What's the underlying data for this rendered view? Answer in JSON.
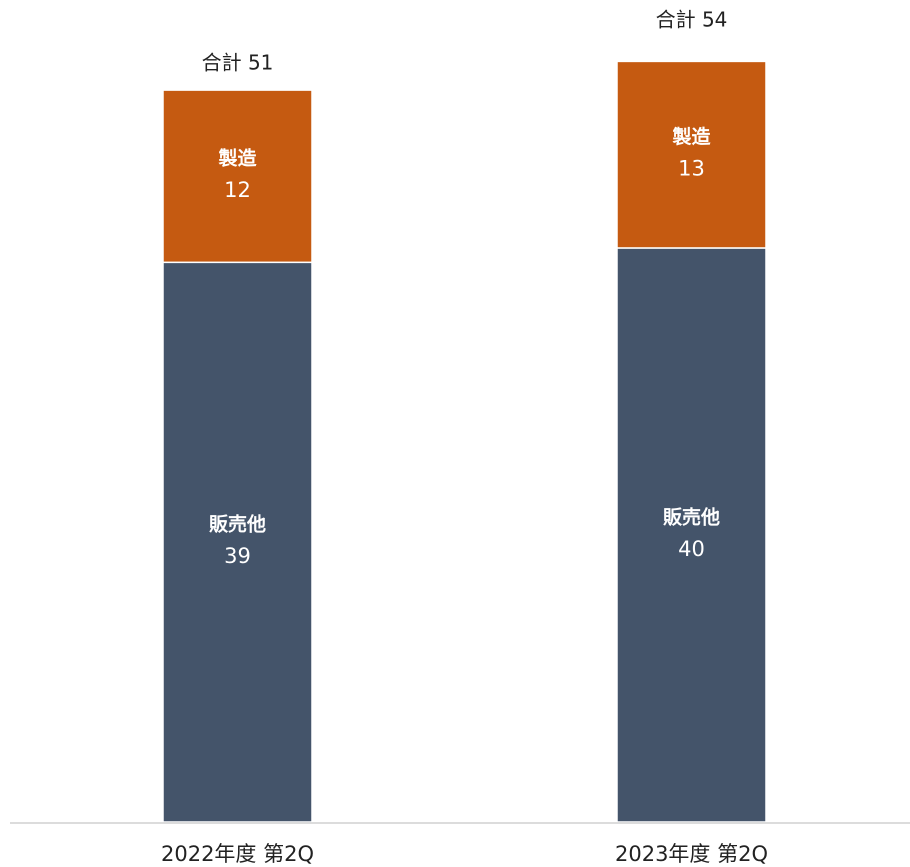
{
  "chart_data": {
    "type": "stacked_bar",
    "categories": [
      "2022年度 第2Q",
      "2023年度 第2Q"
    ],
    "series": [
      {
        "name": "販売他",
        "color": "#44546a",
        "values": [
          39,
          40
        ]
      },
      {
        "name": "製造",
        "color": "#c55a11",
        "values": [
          12,
          13
        ]
      }
    ],
    "totals": {
      "values": [
        51,
        54
      ],
      "labels": [
        "合計 51",
        "合計 54"
      ]
    },
    "ylim": [
      0,
      57
    ]
  }
}
